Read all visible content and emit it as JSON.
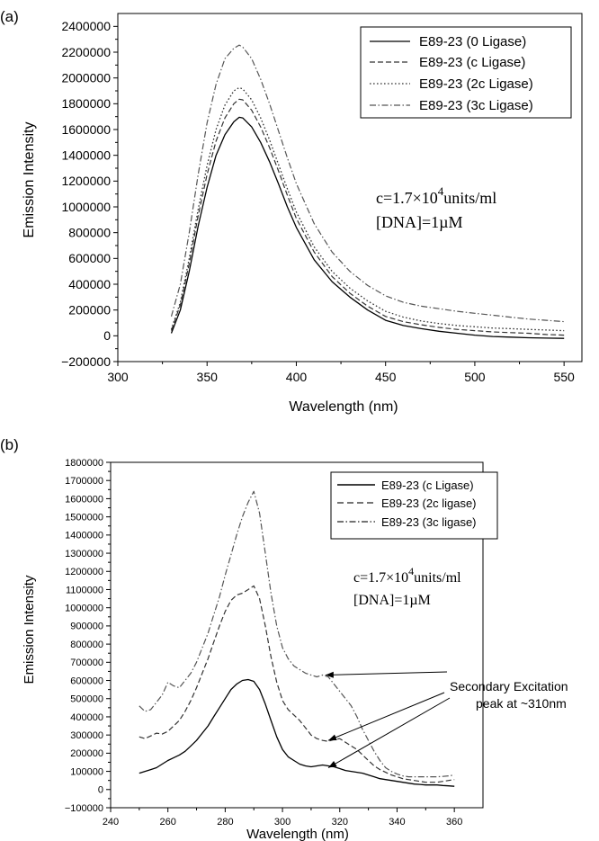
{
  "chart_data": [
    {
      "panel_label": "(a)",
      "type": "line",
      "xlabel": "Wavelength (nm)",
      "ylabel": "Emission Intensity",
      "xlim": [
        300,
        560
      ],
      "ylim": [
        -200000,
        2500000
      ],
      "xticks": [
        300,
        350,
        400,
        450,
        500,
        550
      ],
      "yticks": [
        -200000,
        0,
        200000,
        400000,
        600000,
        800000,
        1000000,
        1200000,
        1400000,
        1600000,
        1800000,
        2000000,
        2200000,
        2400000
      ],
      "legend_position": "top-right",
      "annotation": {
        "c_text": "c=1.7×10",
        "exponent": "4",
        "units": "units/ml",
        "dna": "[DNA]=1µM"
      },
      "series": [
        {
          "name": "E89-23 (0 Ligase)",
          "style": "solid",
          "x": [
            330,
            335,
            340,
            345,
            350,
            355,
            360,
            365,
            368,
            370,
            375,
            380,
            385,
            390,
            395,
            400,
            410,
            420,
            430,
            440,
            450,
            460,
            470,
            480,
            490,
            500,
            510,
            520,
            530,
            540,
            550
          ],
          "y": [
            20000,
            200000,
            500000,
            850000,
            1150000,
            1400000,
            1560000,
            1660000,
            1695000,
            1690000,
            1620000,
            1500000,
            1350000,
            1180000,
            1000000,
            840000,
            590000,
            420000,
            300000,
            200000,
            120000,
            80000,
            55000,
            35000,
            20000,
            5000,
            -5000,
            -10000,
            -15000,
            -18000,
            -20000
          ]
        },
        {
          "name": "E89-23 (c Ligase)",
          "style": "dashed",
          "x": [
            330,
            335,
            340,
            345,
            350,
            355,
            360,
            365,
            368,
            370,
            375,
            380,
            385,
            390,
            395,
            400,
            410,
            420,
            430,
            440,
            450,
            460,
            470,
            480,
            490,
            500,
            510,
            520,
            530,
            540,
            550
          ],
          "y": [
            40000,
            240000,
            560000,
            930000,
            1250000,
            1510000,
            1690000,
            1800000,
            1835000,
            1830000,
            1750000,
            1620000,
            1460000,
            1280000,
            1090000,
            910000,
            650000,
            460000,
            330000,
            230000,
            150000,
            110000,
            85000,
            65000,
            50000,
            40000,
            30000,
            25000,
            20000,
            10000,
            5000
          ]
        },
        {
          "name": "E89-23 (2c Ligase)",
          "style": "dotted",
          "x": [
            330,
            335,
            340,
            345,
            350,
            355,
            360,
            365,
            368,
            370,
            375,
            380,
            385,
            390,
            395,
            400,
            410,
            420,
            430,
            440,
            450,
            460,
            470,
            480,
            490,
            500,
            510,
            520,
            530,
            540,
            550
          ],
          "y": [
            50000,
            260000,
            600000,
            980000,
            1320000,
            1600000,
            1790000,
            1900000,
            1925000,
            1915000,
            1830000,
            1690000,
            1520000,
            1330000,
            1140000,
            960000,
            690000,
            500000,
            370000,
            270000,
            190000,
            145000,
            115000,
            95000,
            80000,
            70000,
            60000,
            55000,
            50000,
            45000,
            40000
          ]
        },
        {
          "name": "E89-23 (3c Ligase)",
          "style": "dashdot",
          "x": [
            330,
            335,
            340,
            345,
            350,
            355,
            360,
            365,
            368,
            370,
            375,
            380,
            385,
            390,
            395,
            400,
            410,
            420,
            430,
            440,
            450,
            460,
            470,
            480,
            490,
            500,
            510,
            520,
            530,
            540,
            550
          ],
          "y": [
            150000,
            400000,
            800000,
            1250000,
            1650000,
            1950000,
            2150000,
            2230000,
            2255000,
            2240000,
            2150000,
            1990000,
            1800000,
            1590000,
            1380000,
            1180000,
            870000,
            650000,
            500000,
            390000,
            310000,
            260000,
            230000,
            210000,
            190000,
            175000,
            160000,
            145000,
            130000,
            120000,
            110000
          ]
        }
      ]
    },
    {
      "panel_label": "(b)",
      "type": "line",
      "xlabel": "Wavelength (nm)",
      "ylabel": "Emission Intensity",
      "xlim": [
        240,
        370
      ],
      "ylim": [
        -100000,
        1800000
      ],
      "xticks": [
        240,
        260,
        280,
        300,
        320,
        340,
        360
      ],
      "yticks": [
        -100000,
        0,
        100000,
        200000,
        300000,
        400000,
        500000,
        600000,
        700000,
        800000,
        900000,
        1000000,
        1100000,
        1200000,
        1300000,
        1400000,
        1500000,
        1600000,
        1700000,
        1800000
      ],
      "legend_position": "top-right",
      "annotation": {
        "c_text": "c=1.7×10",
        "exponent": "4",
        "units": "units/ml",
        "dna": "[DNA]=1µM"
      },
      "callout": {
        "line1": "Secondary Excitation",
        "line2": "peak at ~310nm",
        "arrow_targets": [
          [
            315,
            630000
          ],
          [
            316,
            270000
          ],
          [
            316,
            120000
          ]
        ]
      },
      "series": [
        {
          "name": "E89-23 (c Ligase)",
          "style": "solid",
          "x": [
            250,
            252,
            254,
            256,
            258,
            260,
            262,
            264,
            266,
            268,
            270,
            272,
            274,
            276,
            278,
            280,
            282,
            284,
            286,
            288,
            290,
            292,
            294,
            296,
            298,
            300,
            302,
            304,
            306,
            308,
            310,
            312,
            314,
            316,
            318,
            320,
            322,
            324,
            326,
            328,
            330,
            332,
            334,
            336,
            338,
            340,
            342,
            344,
            346,
            348,
            350,
            352,
            354,
            356,
            358,
            360
          ],
          "y": [
            90000,
            100000,
            110000,
            120000,
            140000,
            160000,
            175000,
            190000,
            210000,
            240000,
            270000,
            310000,
            350000,
            400000,
            450000,
            500000,
            550000,
            580000,
            600000,
            605000,
            595000,
            550000,
            470000,
            380000,
            290000,
            220000,
            180000,
            160000,
            140000,
            130000,
            125000,
            130000,
            135000,
            130000,
            125000,
            115000,
            105000,
            100000,
            95000,
            90000,
            80000,
            70000,
            60000,
            55000,
            50000,
            45000,
            40000,
            35000,
            30000,
            28000,
            25000,
            25000,
            25000,
            22000,
            20000,
            18000
          ]
        },
        {
          "name": "E89-23 (2c ligase)",
          "style": "dashed",
          "x": [
            250,
            252,
            254,
            256,
            258,
            260,
            262,
            264,
            266,
            268,
            270,
            272,
            274,
            276,
            278,
            280,
            282,
            284,
            286,
            288,
            290,
            292,
            294,
            296,
            298,
            300,
            302,
            304,
            306,
            308,
            310,
            312,
            314,
            316,
            318,
            320,
            322,
            324,
            326,
            328,
            330,
            332,
            334,
            336,
            338,
            340,
            342,
            344,
            346,
            348,
            350,
            352,
            354,
            356,
            358,
            360
          ],
          "y": [
            290000,
            280000,
            295000,
            310000,
            305000,
            320000,
            350000,
            380000,
            430000,
            490000,
            560000,
            640000,
            720000,
            810000,
            900000,
            980000,
            1040000,
            1070000,
            1080000,
            1100000,
            1120000,
            1050000,
            900000,
            730000,
            590000,
            490000,
            440000,
            410000,
            380000,
            340000,
            300000,
            280000,
            270000,
            265000,
            275000,
            280000,
            260000,
            240000,
            220000,
            190000,
            160000,
            130000,
            110000,
            95000,
            80000,
            70000,
            60000,
            55000,
            50000,
            45000,
            40000,
            40000,
            40000,
            45000,
            50000,
            55000
          ]
        },
        {
          "name": "E89-23 (3c ligase)",
          "style": "dashdot",
          "x": [
            250,
            252,
            254,
            256,
            258,
            260,
            262,
            264,
            266,
            268,
            270,
            272,
            274,
            276,
            278,
            280,
            282,
            284,
            286,
            288,
            290,
            292,
            294,
            296,
            298,
            300,
            302,
            304,
            306,
            308,
            310,
            312,
            314,
            316,
            318,
            320,
            322,
            324,
            326,
            328,
            330,
            332,
            334,
            336,
            338,
            340,
            342,
            344,
            346,
            348,
            350,
            352,
            354,
            356,
            358,
            360
          ],
          "y": [
            460000,
            430000,
            440000,
            480000,
            520000,
            590000,
            570000,
            560000,
            600000,
            640000,
            700000,
            780000,
            860000,
            960000,
            1060000,
            1180000,
            1290000,
            1400000,
            1500000,
            1580000,
            1640000,
            1520000,
            1300000,
            1080000,
            900000,
            780000,
            720000,
            680000,
            660000,
            640000,
            630000,
            620000,
            630000,
            620000,
            580000,
            540000,
            500000,
            460000,
            400000,
            330000,
            270000,
            210000,
            160000,
            120000,
            100000,
            85000,
            75000,
            70000,
            70000,
            70000,
            70000,
            70000,
            70000,
            72000,
            75000,
            80000
          ]
        }
      ]
    }
  ]
}
